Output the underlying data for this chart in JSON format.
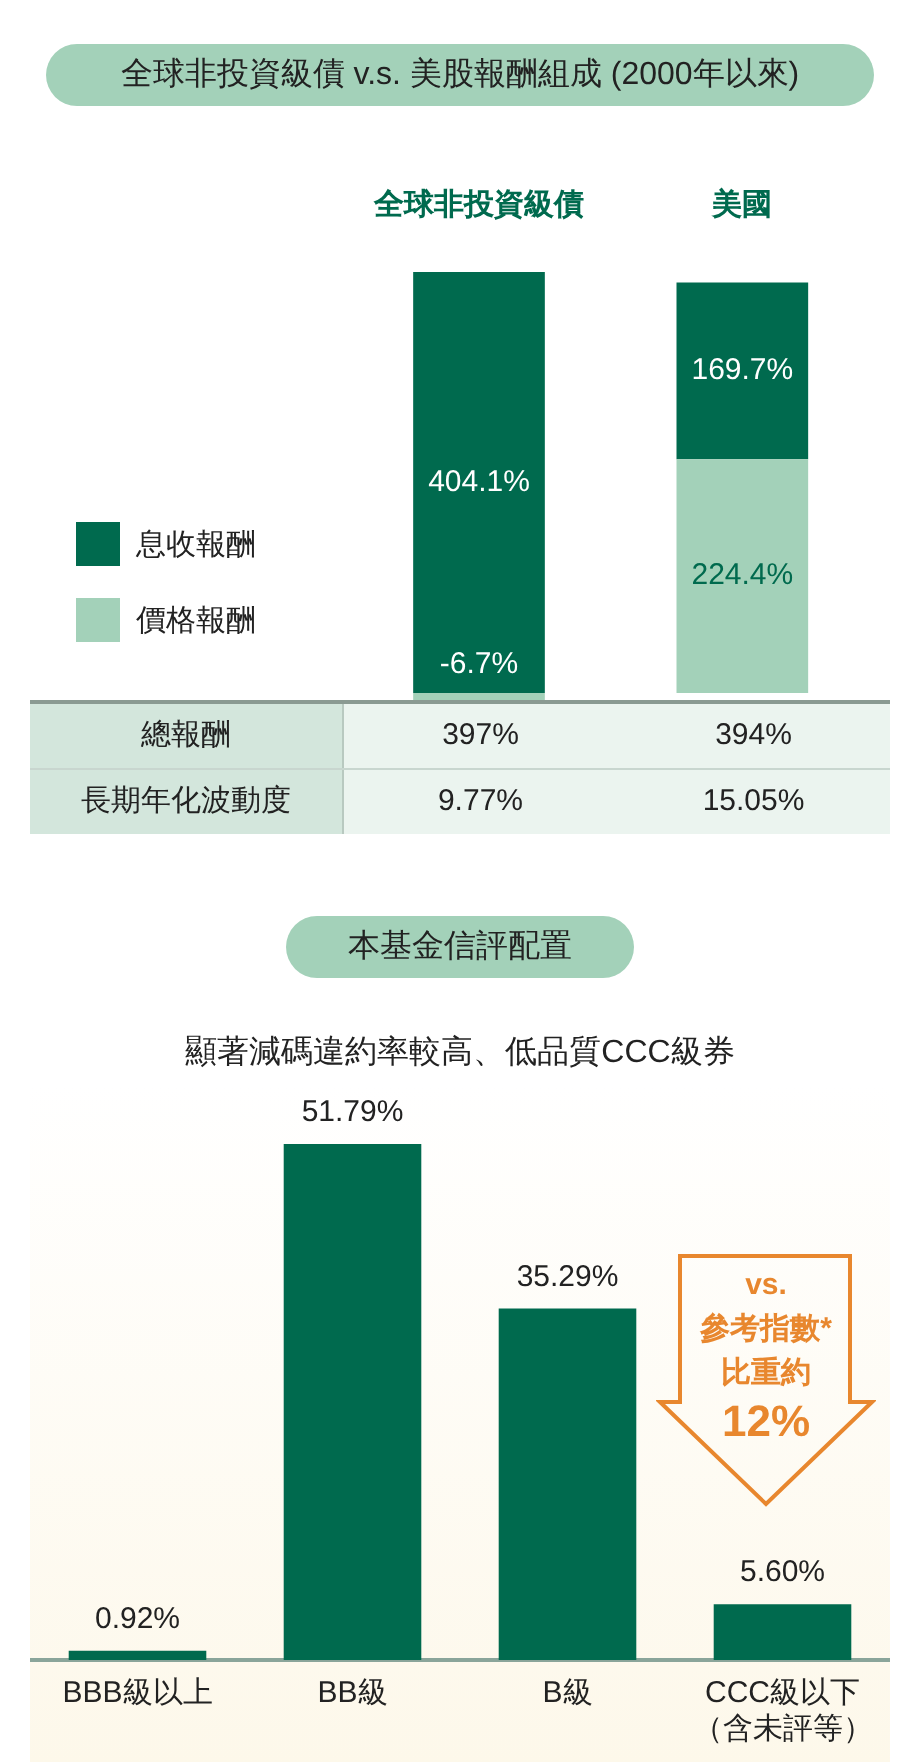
{
  "chart_data": [
    {
      "type": "bar",
      "title": "全球非投資級債 v.s. 美股報酬組成 (2000年以來)",
      "categories": [
        "全球非投資級債",
        "美國"
      ],
      "stacked": true,
      "legend": "left",
      "series": [
        {
          "name": "價格報酬",
          "color": "#a3d1b9",
          "values": [
            -6.7,
            224.4
          ],
          "value_labels": [
            "-6.7%",
            "224.4%"
          ]
        },
        {
          "name": "息收報酬",
          "color": "#006a4e",
          "values": [
            404.1,
            169.7
          ],
          "value_labels": [
            "404.1%",
            "169.7%"
          ]
        }
      ],
      "totals": [
        "397%",
        "394%"
      ],
      "annotations": [
        "總報酬",
        "長期年化波動度",
        "9.77%",
        "15.05%"
      ]
    },
    {
      "type": "bar",
      "title": "本基金信評配置",
      "subtitle": "顯著減碼違約率較高、低品質CCC級券",
      "categories": [
        "BBB級以上",
        "BB級",
        "B級",
        "CCC級以下（含未評等）"
      ],
      "color": "#006a4e",
      "values": [
        0.92,
        51.79,
        35.29,
        5.6
      ],
      "value_labels": [
        "0.92%",
        "51.79%",
        "35.29%",
        "5.60%"
      ],
      "annotations": [
        "vs.\n參考指數*\n比重約\n12%"
      ]
    }
  ]
}
